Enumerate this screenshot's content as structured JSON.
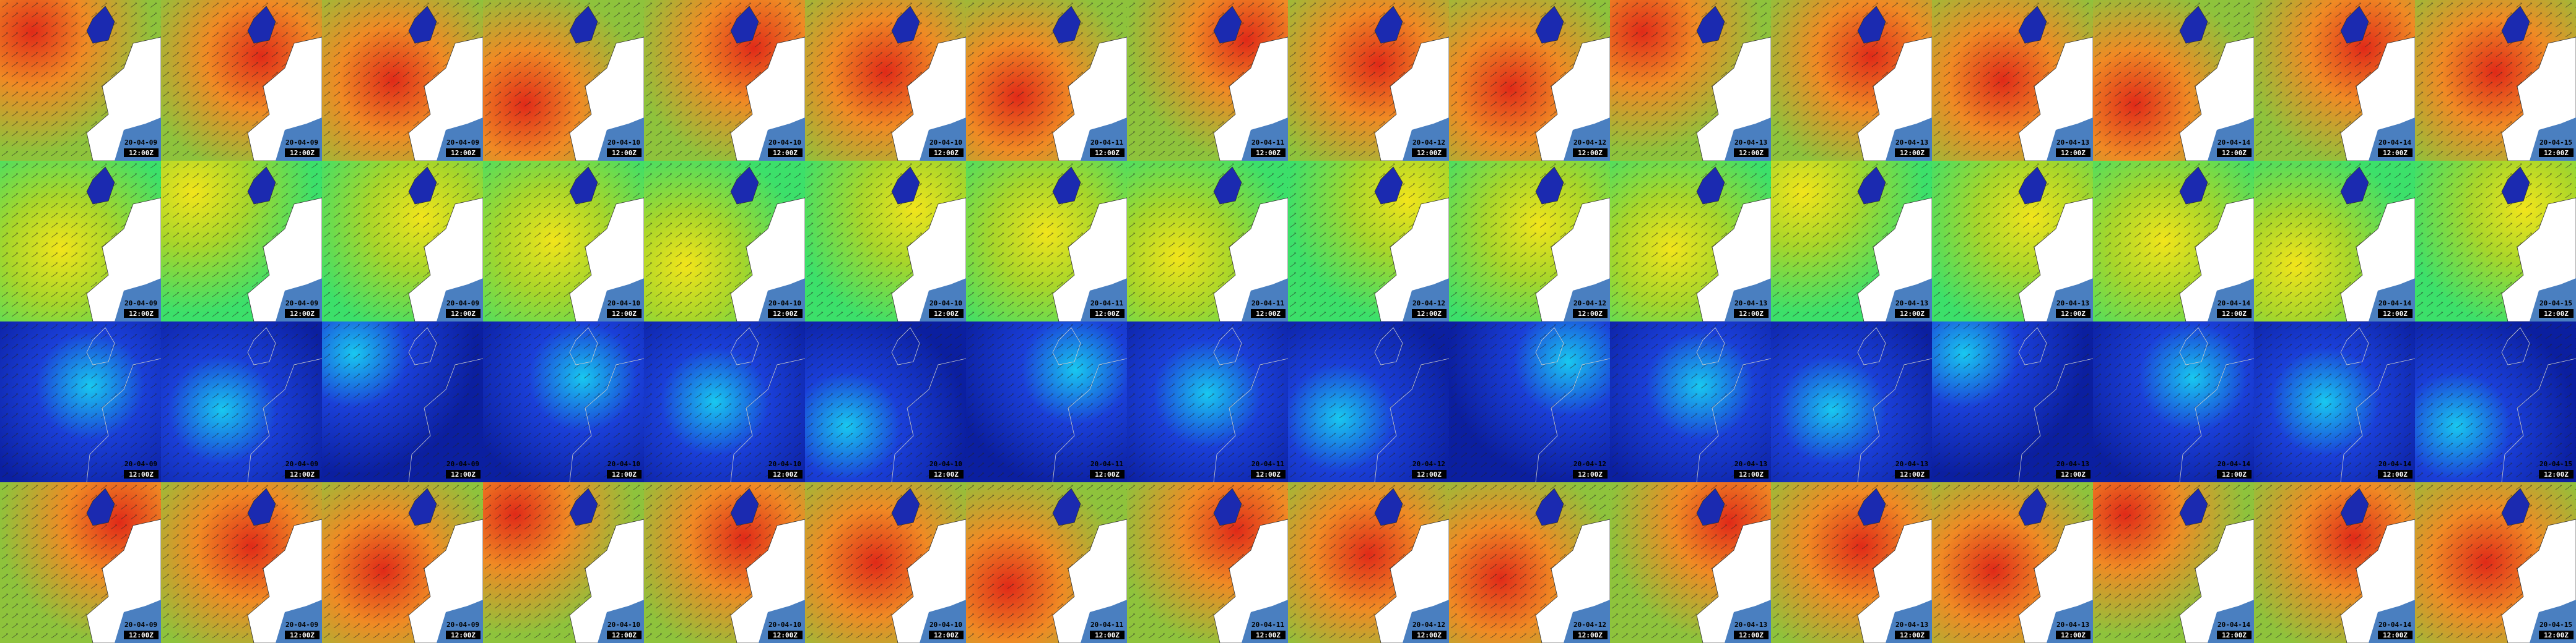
{
  "columns": [
    {
      "date": "20-04-09",
      "time": "12:00Z"
    },
    {
      "date": "20-04-09",
      "time": "12:00Z"
    },
    {
      "date": "20-04-09",
      "time": "12:00Z"
    },
    {
      "date": "20-04-10",
      "time": "12:00Z"
    },
    {
      "date": "20-04-10",
      "time": "12:00Z"
    },
    {
      "date": "20-04-10",
      "time": "12:00Z"
    },
    {
      "date": "20-04-11",
      "time": "12:00Z"
    },
    {
      "date": "20-04-11",
      "time": "12:00Z"
    },
    {
      "date": "20-04-12",
      "time": "12:00Z"
    },
    {
      "date": "20-04-12",
      "time": "12:00Z"
    },
    {
      "date": "20-04-13",
      "time": "12:00Z"
    },
    {
      "date": "20-04-13",
      "time": "12:00Z"
    },
    {
      "date": "20-04-13",
      "time": "12:00Z"
    },
    {
      "date": "20-04-14",
      "time": "12:00Z"
    },
    {
      "date": "20-04-14",
      "time": "12:00Z"
    },
    {
      "date": "20-04-15",
      "time": "12:00Z"
    }
  ]
}
